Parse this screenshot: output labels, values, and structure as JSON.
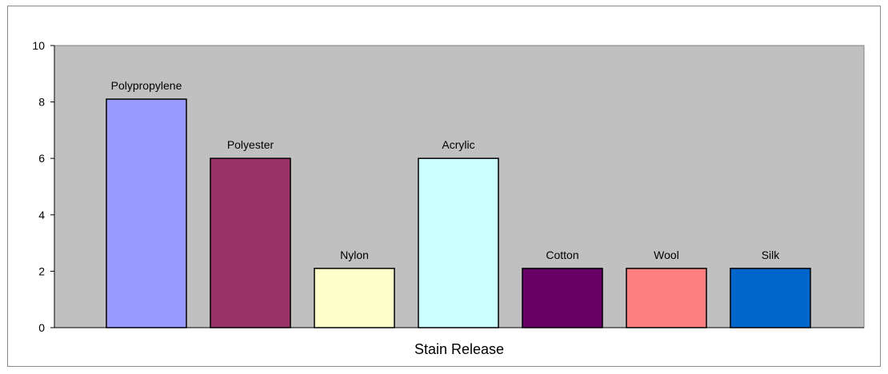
{
  "chart_data": {
    "type": "bar",
    "title": "",
    "xlabel": "Stain Release",
    "ylabel": "",
    "ylim": [
      0,
      10
    ],
    "yticks": [
      0,
      2,
      4,
      6,
      8,
      10
    ],
    "grid": false,
    "legend": "none",
    "plot_background": "#c0c0c0",
    "categories": [
      "Polypropylene",
      "Polyester",
      "Nylon",
      "Acrylic",
      "Cotton",
      "Wool",
      "Silk"
    ],
    "values": [
      8.1,
      6.0,
      2.1,
      6.0,
      2.1,
      2.1,
      2.1
    ],
    "colors": [
      "#9999ff",
      "#993366",
      "#ffffcc",
      "#ccffff",
      "#660066",
      "#ff8080",
      "#0066cc"
    ]
  }
}
